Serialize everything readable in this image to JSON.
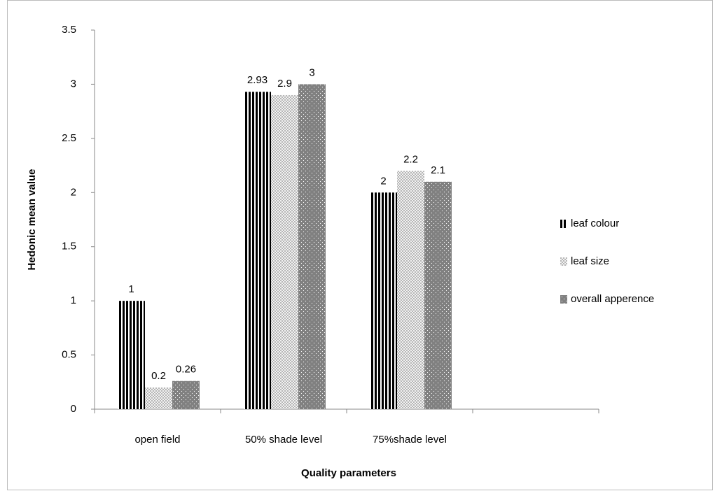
{
  "chart_data": {
    "type": "bar",
    "x_label": "Quality parameters",
    "y_label": "Hedonic mean value",
    "categories": [
      "open field",
      "50% shade level",
      "75%shade level",
      null
    ],
    "series": [
      {
        "name": "leaf colour",
        "color": "#000000",
        "values": [
          1,
          2.93,
          2,
          null
        ]
      },
      {
        "name": "leaf size",
        "color": "#8c8c8c",
        "values": [
          0.2,
          2.9,
          2.2,
          null
        ]
      },
      {
        "name": "overall apperence",
        "color": "#808080",
        "values": [
          0.26,
          3,
          2.1,
          null
        ]
      }
    ],
    "ylim": [
      0,
      3.5
    ],
    "yticks": [
      0,
      0.5,
      1,
      1.5,
      2,
      2.5,
      3,
      3.5
    ],
    "grid": false,
    "legend": "right",
    "data_labels": true
  }
}
